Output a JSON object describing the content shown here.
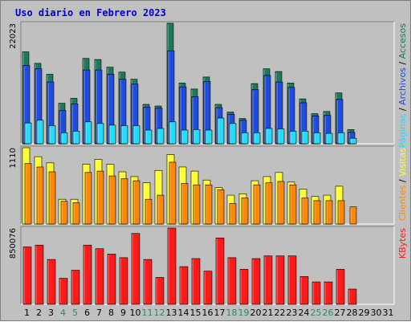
{
  "title": "Uso diario en Febrero 2023",
  "colors": {
    "background": "#c0c0c0",
    "accesos": "#1a7a5a",
    "archivos": "#1f4ce0",
    "paginas": "#22ddff",
    "visitas": "#ffff33",
    "clientes": "#ff8800",
    "kbytes": "#ff1a1a",
    "weekend_tick": "#2a8a6a",
    "weekday_tick": "#000000"
  },
  "legend": {
    "accesos": "Accesos",
    "sep1": "/",
    "archivos": "Archivos",
    "sep2": "/",
    "paginas": "Páginas",
    "visitas": "Visitas",
    "sep3": "/",
    "clientes": "Clientes",
    "kbytes": "KBytes"
  },
  "chart_data": [
    {
      "type": "bar",
      "panel": "accesos-archivos-paginas",
      "ymax_label": "22023",
      "ylim": [
        0,
        22023
      ],
      "categories": [
        "1",
        "2",
        "3",
        "4",
        "5",
        "6",
        "7",
        "8",
        "9",
        "10",
        "11",
        "12",
        "13",
        "14",
        "15",
        "16",
        "17",
        "18",
        "19",
        "20",
        "21",
        "22",
        "23",
        "24",
        "25",
        "26",
        "27",
        "28",
        "29",
        "30",
        "31"
      ],
      "series": [
        {
          "name": "Accesos",
          "values": [
            16800,
            14700,
            12700,
            7400,
            8300,
            15600,
            15400,
            14000,
            13100,
            11800,
            7200,
            6900,
            22023,
            11100,
            10000,
            12200,
            7200,
            5800,
            4600,
            11000,
            13700,
            13200,
            11100,
            8200,
            5500,
            5900,
            9300,
            2600,
            null,
            null,
            null
          ]
        },
        {
          "name": "Archivos",
          "values": [
            14300,
            13700,
            11300,
            6100,
            7300,
            13500,
            13500,
            12700,
            11800,
            10900,
            6700,
            6500,
            17000,
            10400,
            8600,
            11400,
            6600,
            5400,
            4300,
            9900,
            12500,
            11300,
            10300,
            7500,
            5100,
            5200,
            8100,
            2100,
            null,
            null,
            null
          ]
        },
        {
          "name": "Páginas",
          "values": [
            3800,
            4300,
            3300,
            2000,
            2300,
            4000,
            3700,
            3400,
            3300,
            3300,
            2500,
            2800,
            4000,
            2500,
            2600,
            2500,
            4700,
            3700,
            2000,
            2000,
            2800,
            2700,
            2300,
            2300,
            2000,
            1900,
            2000,
            1000,
            null,
            null,
            null
          ]
        }
      ]
    },
    {
      "type": "bar",
      "panel": "visitas-clientes",
      "ymax_label": "1110",
      "ylim": [
        0,
        1110
      ],
      "categories": [
        "1",
        "2",
        "3",
        "4",
        "5",
        "6",
        "7",
        "8",
        "9",
        "10",
        "11",
        "12",
        "13",
        "14",
        "15",
        "16",
        "17",
        "18",
        "19",
        "20",
        "21",
        "22",
        "23",
        "24",
        "25",
        "26",
        "27",
        "28",
        "29",
        "30",
        "31"
      ],
      "series": [
        {
          "name": "Visitas",
          "values": [
            1110,
            980,
            890,
            360,
            360,
            870,
            940,
            870,
            760,
            690,
            600,
            780,
            1010,
            830,
            770,
            640,
            530,
            420,
            440,
            630,
            690,
            750,
            610,
            510,
            400,
            420,
            550,
            null,
            null,
            null,
            null
          ]
        },
        {
          "name": "Clientes",
          "values": [
            880,
            830,
            760,
            330,
            310,
            750,
            770,
            700,
            660,
            630,
            360,
            420,
            900,
            590,
            570,
            570,
            500,
            300,
            380,
            570,
            600,
            620,
            570,
            380,
            340,
            340,
            340,
            250,
            null,
            null,
            null
          ]
        }
      ]
    },
    {
      "type": "bar",
      "panel": "kbytes",
      "ymax_label": "850076",
      "ylim": [
        0,
        850076
      ],
      "categories": [
        "1",
        "2",
        "3",
        "4",
        "5",
        "6",
        "7",
        "8",
        "9",
        "10",
        "11",
        "12",
        "13",
        "14",
        "15",
        "16",
        "17",
        "18",
        "19",
        "20",
        "21",
        "22",
        "23",
        "24",
        "25",
        "26",
        "27",
        "28",
        "29",
        "30",
        "31"
      ],
      "series": [
        {
          "name": "KBytes",
          "values": [
            640000,
            660000,
            500000,
            290000,
            380000,
            660000,
            620000,
            560000,
            520000,
            790000,
            500000,
            300000,
            850076,
            420000,
            510000,
            370000,
            740000,
            520000,
            390000,
            510000,
            540000,
            540000,
            540000,
            310000,
            250000,
            250000,
            390000,
            170000,
            null,
            null,
            null
          ]
        }
      ]
    }
  ]
}
